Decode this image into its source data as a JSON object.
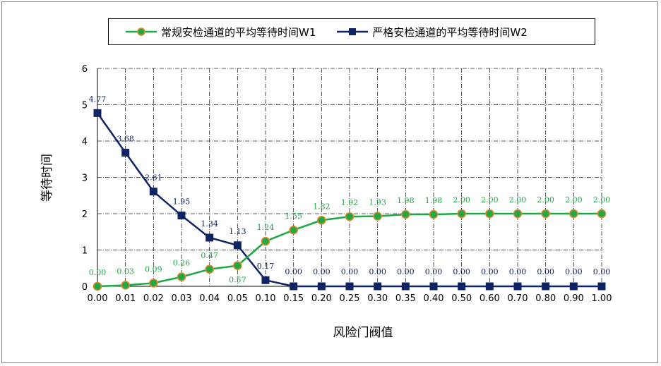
{
  "chart_data": {
    "type": "line",
    "xlabel": "风险门阀值",
    "ylabel": "等待时间",
    "ylim": [
      0,
      6
    ],
    "yticks": [
      "0",
      "1",
      "2",
      "3",
      "4",
      "5",
      "6"
    ],
    "categories": [
      "0.00",
      "0.01",
      "0.02",
      "0.03",
      "0.04",
      "0.05",
      "0.10",
      "0.15",
      "0.20",
      "0.25",
      "0.30",
      "0.35",
      "0.40",
      "0.50",
      "0.60",
      "0.70",
      "0.80",
      "0.90",
      "1.00"
    ],
    "grid": true,
    "legend_position": "top",
    "series": [
      {
        "name": "常规安检通道的平均等待时间W1",
        "color": "#1fa846",
        "marker": "circle",
        "values": [
          0.0,
          0.03,
          0.09,
          0.26,
          0.47,
          0.57,
          1.24,
          1.55,
          1.82,
          1.92,
          1.93,
          1.98,
          1.98,
          2.0,
          2.0,
          2.0,
          2.0,
          2.0,
          2.0
        ],
        "labels": [
          "0.00",
          "0.03",
          "0.09",
          "0.26",
          "0.47",
          "0.57",
          "1.24",
          "1.55",
          "1.82",
          "1.92",
          "1.93",
          "1.98",
          "1.98",
          "2.00",
          "2.00",
          "2.00",
          "2.00",
          "2.00",
          "2.00"
        ]
      },
      {
        "name": "严格安检通道的平均等待时间W2",
        "color": "#0f2463",
        "marker": "square",
        "values": [
          4.77,
          3.68,
          2.61,
          1.95,
          1.34,
          1.13,
          0.17,
          0.0,
          0.0,
          0.0,
          0.0,
          0.0,
          0.0,
          0.0,
          0.0,
          0.0,
          0.0,
          0.0,
          0.0
        ],
        "labels": [
          "4.77",
          "3.68",
          "2.61",
          "1.95",
          "1.34",
          "1.13",
          "0.17",
          "0.00",
          "0.00",
          "0.00",
          "0.00",
          "0.00",
          "0.00",
          "0.00",
          "0.00",
          "0.00",
          "0.00",
          "0.00",
          "0.00"
        ]
      }
    ]
  }
}
